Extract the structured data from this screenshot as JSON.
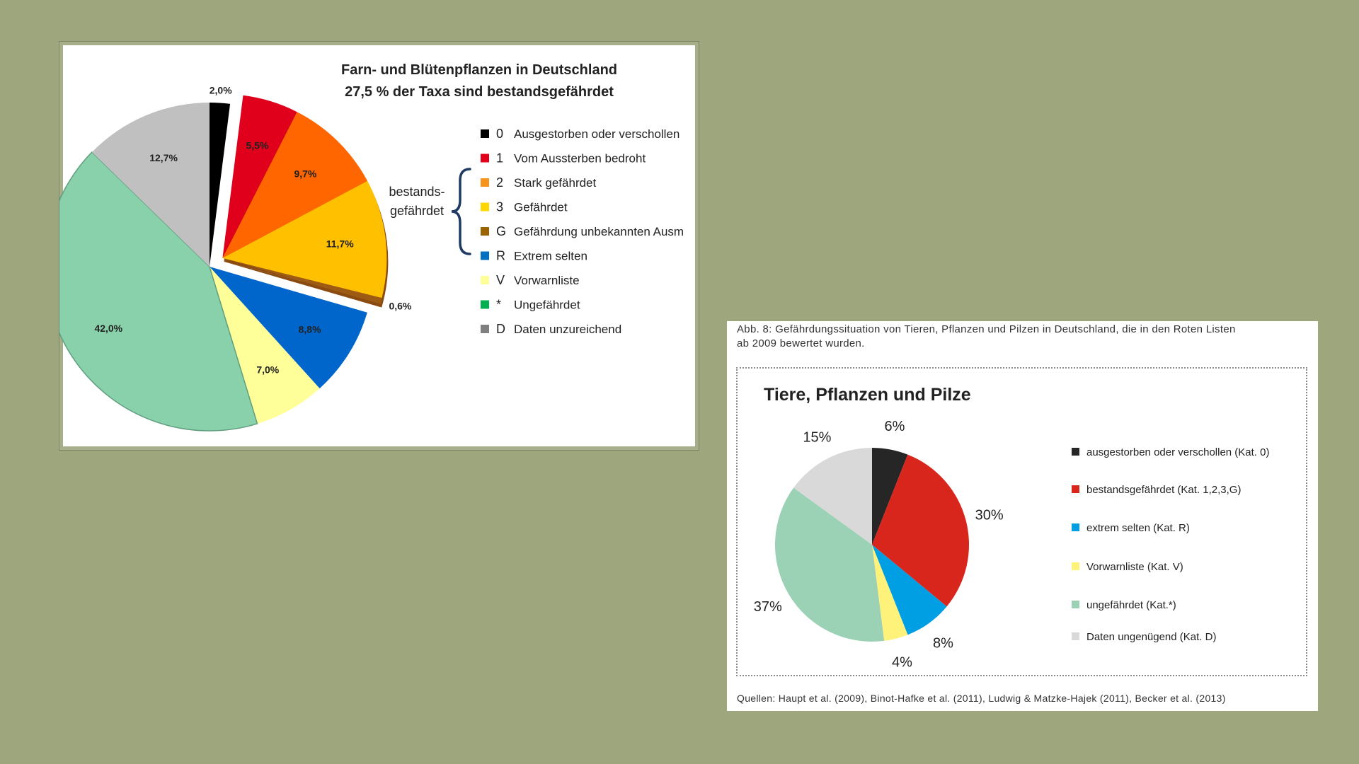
{
  "colors": {
    "background": "#9ea67d",
    "brace": "#1f3b63"
  },
  "chart_data": [
    {
      "type": "pie",
      "title": "Farn- und Blütenpflanzen in Deutschland",
      "subtitle": "27,5 % der Taxa sind bestandsgefährdet",
      "bracket_label_line1": "bestands-",
      "bracket_label_line2": "gefährdet",
      "legend_placement": "right",
      "slices": [
        {
          "code": "0",
          "label": "Ausgestorben oder verschollen",
          "value": 2.0,
          "value_label": "2,0%",
          "color": "#000000",
          "exploded": false
        },
        {
          "code": "1",
          "label": "Vom Aussterben bedroht",
          "value": 5.5,
          "value_label": "5,5%",
          "color": "#e0001b",
          "exploded": true
        },
        {
          "code": "2",
          "label": "Stark gefährdet",
          "value": 9.7,
          "value_label": "9,7%",
          "color": "#ff6600",
          "exploded": true
        },
        {
          "code": "3",
          "label": "Gefährdet",
          "value": 11.7,
          "value_label": "11,7%",
          "color": "#ffc000",
          "exploded": true
        },
        {
          "code": "G",
          "label": "Gefährdung unbekannten Ausm",
          "value": 0.6,
          "value_label": "0,6%",
          "color": "#9c5a12",
          "exploded": true
        },
        {
          "code": "R",
          "label": "Extrem selten",
          "value": 8.8,
          "value_label": "8,8%",
          "color": "#0066cc",
          "exploded": false
        },
        {
          "code": "V",
          "label": "Vorwarnliste",
          "value": 7.0,
          "value_label": "7,0%",
          "color": "#ffff99",
          "exploded": false
        },
        {
          "code": "*",
          "label": "Ungefährdet",
          "value": 42.0,
          "value_label": "42,0%",
          "color": "#88d1ab",
          "exploded": false
        },
        {
          "code": "D",
          "label": "Daten unzureichend",
          "value": 12.7,
          "value_label": "12,7%",
          "color": "#c0c0c0",
          "exploded": false
        }
      ],
      "legend_swatch_colors": [
        "#000000",
        "#e0001b",
        "#f7941d",
        "#ffd700",
        "#9c6400",
        "#0070c0",
        "#ffff99",
        "#00b050",
        "#808080"
      ]
    },
    {
      "type": "pie",
      "title": "Tiere, Pflanzen und Pilze",
      "legend_placement": "right",
      "slices": [
        {
          "label": "ausgestorben oder verschollen (Kat. 0)",
          "value": 6,
          "value_label": "6%",
          "color": "#262626"
        },
        {
          "label": "bestandsgefährdet (Kat. 1,2,3,G)",
          "value": 30,
          "value_label": "30%",
          "color": "#d9261c"
        },
        {
          "label": "extrem selten (Kat. R)",
          "value": 8,
          "value_label": "8%",
          "color": "#009fe3"
        },
        {
          "label": "Vorwarnliste (Kat. V)",
          "value": 4,
          "value_label": "4%",
          "color": "#fff27a"
        },
        {
          "label": "ungefährdet (Kat.*)",
          "value": 37,
          "value_label": "37%",
          "color": "#9bd1b5"
        },
        {
          "label": "Daten ungenügend (Kat. D)",
          "value": 15,
          "value_label": "15%",
          "color": "#d9d9d9"
        }
      ]
    }
  ],
  "figure_caption": {
    "line1": "Abb. 8: Gefährdungssituation von Tieren, Pflanzen und Pilzen in Deutschland, die in den Roten Listen",
    "line2": "ab 2009 bewertet wurden."
  },
  "sources": "Quellen: Haupt et al. (2009), Binot-Hafke et al. (2011), Ludwig & Matzke-Hajek (2011), Becker et al. (2013)"
}
